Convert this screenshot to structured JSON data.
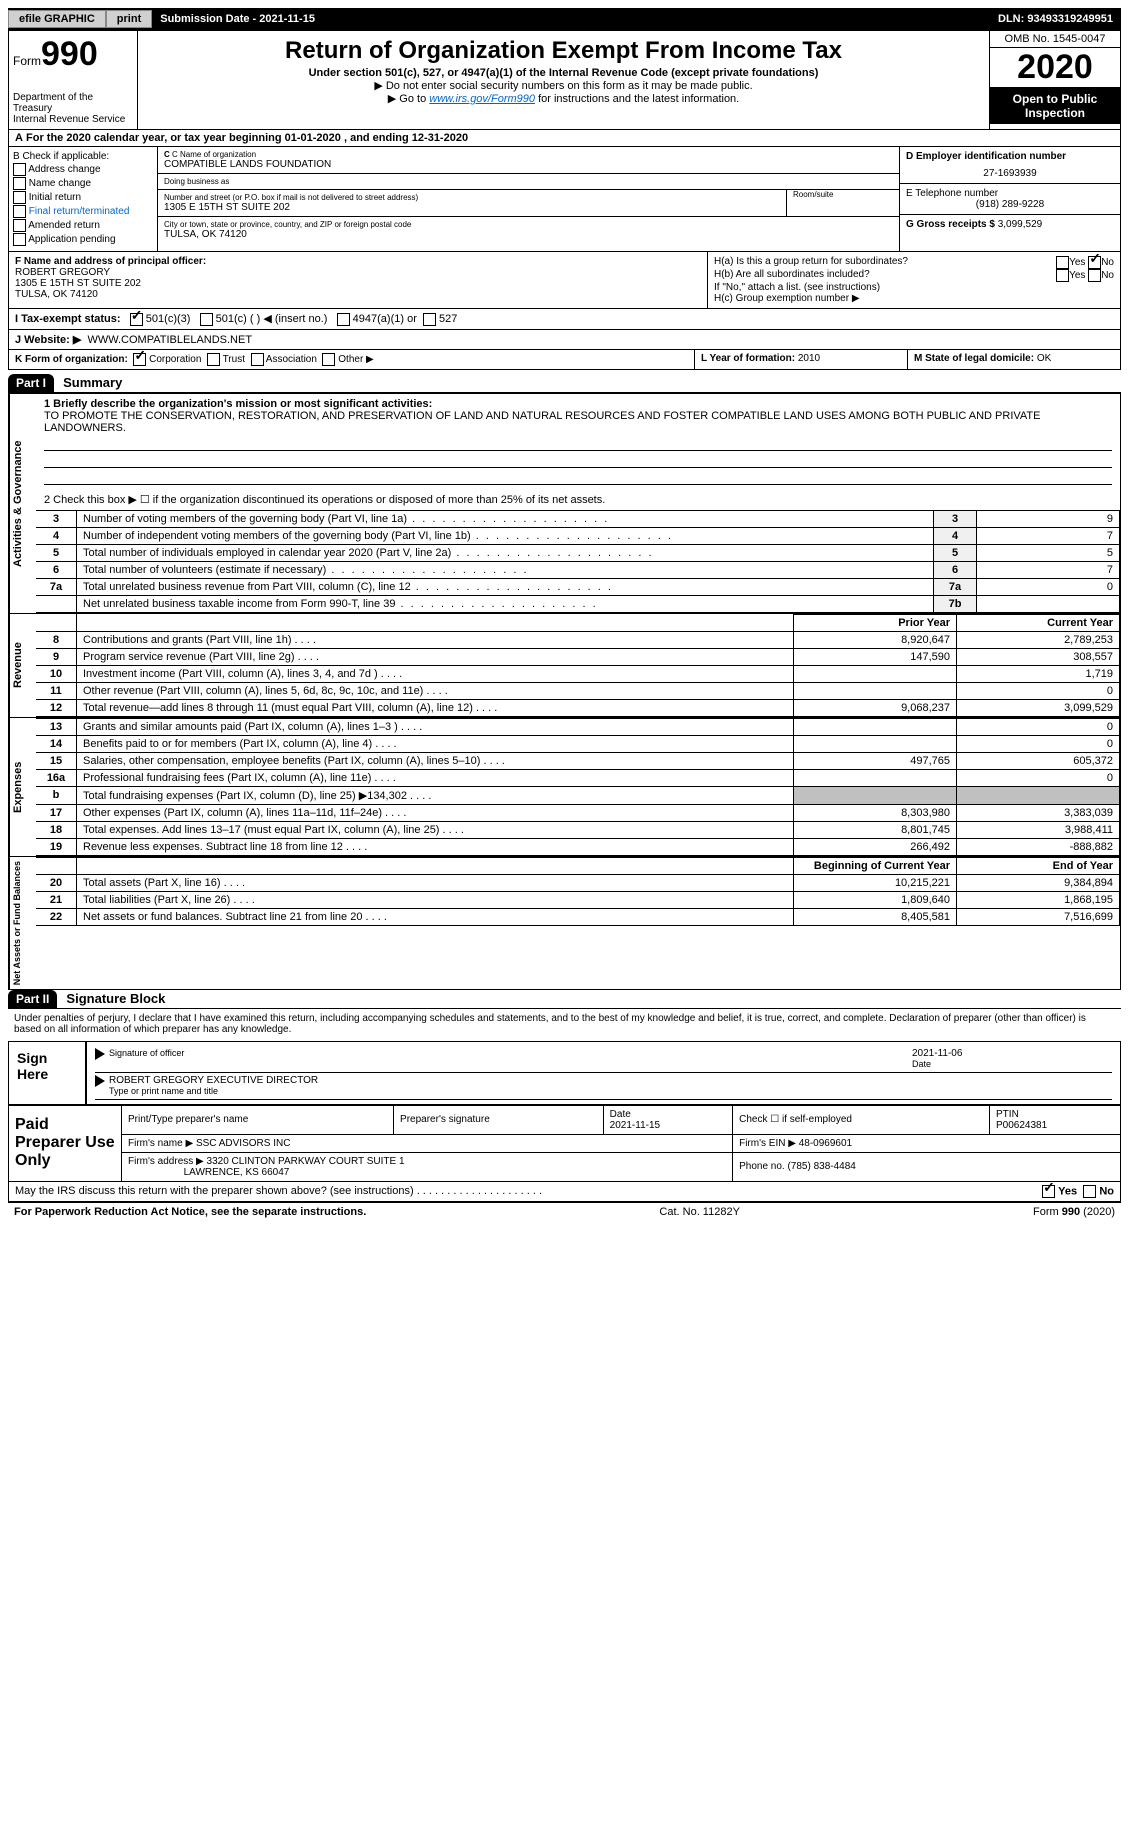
{
  "topbar": {
    "efile": "efile GRAPHIC",
    "print": "print",
    "sub_date_label": "Submission Date - ",
    "sub_date": "2021-11-15",
    "dln": "DLN: 93493319249951"
  },
  "header": {
    "form_label": "Form",
    "form_number": "990",
    "dept": "Department of the Treasury",
    "irs": "Internal Revenue Service",
    "title": "Return of Organization Exempt From Income Tax",
    "subtitle": "Under section 501(c), 527, or 4947(a)(1) of the Internal Revenue Code (except private foundations)",
    "instr1_arrow": "▶",
    "instr1": "Do not enter social security numbers on this form as it may be made public.",
    "instr2_pre": "Go to ",
    "instr2_link": "www.irs.gov/Form990",
    "instr2_post": " for instructions and the latest information.",
    "omb": "OMB No. 1545-0047",
    "year": "2020",
    "open_public": "Open to Public Inspection"
  },
  "period": {
    "prefix": "A",
    "text": "For the 2020 calendar year, or tax year beginning ",
    "begin": "01-01-2020",
    "mid": " , and ending ",
    "end": "12-31-2020"
  },
  "boxB": {
    "label": "B Check if applicable:",
    "opts": [
      "Address change",
      "Name change",
      "Initial return",
      "Final return/terminated",
      "Amended return",
      "Application pending"
    ]
  },
  "boxC": {
    "name_label": "C Name of organization",
    "name": "COMPATIBLE LANDS FOUNDATION",
    "dba_label": "Doing business as",
    "addr_label": "Number and street (or P.O. box if mail is not delivered to street address)",
    "room_label": "Room/suite",
    "addr": "1305 E 15TH ST SUITE 202",
    "city_label": "City or town, state or province, country, and ZIP or foreign postal code",
    "city": "TULSA, OK  74120"
  },
  "right_col": {
    "ein_label": "D Employer identification number",
    "ein": "27-1693939",
    "tel_label": "E Telephone number",
    "tel": "(918) 289-9228",
    "gross_label": "G Gross receipts $ ",
    "gross": "3,099,529"
  },
  "boxF": {
    "label": "F Name and address of principal officer:",
    "name": "ROBERT GREGORY",
    "addr1": "1305 E 15TH ST SUITE 202",
    "addr2": "TULSA, OK  74120"
  },
  "boxH": {
    "ha": "H(a)  Is this a group return for subordinates?",
    "hb": "H(b)  Are all subordinates included?",
    "hb_note": "If \"No,\" attach a list. (see instructions)",
    "hc": "H(c)  Group exemption number ▶",
    "yes": "Yes",
    "no": "No"
  },
  "taxI": {
    "label": "I  Tax-exempt status:",
    "o1": "501(c)(3)",
    "o2": "501(c) (  ) ◀ (insert no.)",
    "o3": "4947(a)(1) or",
    "o4": "527"
  },
  "taxJ": {
    "label": "J  Website: ▶",
    "url": "WWW.COMPATIBLELANDS.NET"
  },
  "rowK": {
    "label": "K Form of organization:",
    "opts": [
      "Corporation",
      "Trust",
      "Association",
      "Other ▶"
    ]
  },
  "rowL": {
    "label": "L Year of formation: ",
    "val": "2010"
  },
  "rowM": {
    "label": "M State of legal domicile: ",
    "val": "OK"
  },
  "part1": {
    "tag": "Part I",
    "title": "Summary",
    "vtab_ag": "Activities & Governance",
    "vtab_rev": "Revenue",
    "vtab_exp": "Expenses",
    "vtab_na": "Net Assets or Fund Balances",
    "mission_label": "1  Briefly describe the organization's mission or most significant activities:",
    "mission": "TO PROMOTE THE CONSERVATION, RESTORATION, AND PRESERVATION OF LAND AND NATURAL RESOURCES AND FOSTER COMPATIBLE LAND USES AMONG BOTH PUBLIC AND PRIVATE LANDOWNERS.",
    "line2": "2  Check this box ▶ ☐  if the organization discontinued its operations or disposed of more than 25% of its net assets.",
    "rows_ag": [
      {
        "n": "3",
        "desc": "Number of voting members of the governing body (Part VI, line 1a)",
        "lbl": "3",
        "val": "9"
      },
      {
        "n": "4",
        "desc": "Number of independent voting members of the governing body (Part VI, line 1b)",
        "lbl": "4",
        "val": "7"
      },
      {
        "n": "5",
        "desc": "Total number of individuals employed in calendar year 2020 (Part V, line 2a)",
        "lbl": "5",
        "val": "5"
      },
      {
        "n": "6",
        "desc": "Total number of volunteers (estimate if necessary)",
        "lbl": "6",
        "val": "7"
      },
      {
        "n": "7a",
        "desc": "Total unrelated business revenue from Part VIII, column (C), line 12",
        "lbl": "7a",
        "val": "0"
      },
      {
        "n": "",
        "desc": "Net unrelated business taxable income from Form 990-T, line 39",
        "lbl": "7b",
        "val": ""
      }
    ],
    "hdr_prior": "Prior Year",
    "hdr_curr": "Current Year",
    "rows_rev": [
      {
        "n": "8",
        "desc": "Contributions and grants (Part VIII, line 1h)",
        "py": "8,920,647",
        "cy": "2,789,253"
      },
      {
        "n": "9",
        "desc": "Program service revenue (Part VIII, line 2g)",
        "py": "147,590",
        "cy": "308,557"
      },
      {
        "n": "10",
        "desc": "Investment income (Part VIII, column (A), lines 3, 4, and 7d )",
        "py": "",
        "cy": "1,719"
      },
      {
        "n": "11",
        "desc": "Other revenue (Part VIII, column (A), lines 5, 6d, 8c, 9c, 10c, and 11e)",
        "py": "",
        "cy": "0"
      },
      {
        "n": "12",
        "desc": "Total revenue—add lines 8 through 11 (must equal Part VIII, column (A), line 12)",
        "py": "9,068,237",
        "cy": "3,099,529"
      }
    ],
    "rows_exp": [
      {
        "n": "13",
        "desc": "Grants and similar amounts paid (Part IX, column (A), lines 1–3 )",
        "py": "",
        "cy": "0"
      },
      {
        "n": "14",
        "desc": "Benefits paid to or for members (Part IX, column (A), line 4)",
        "py": "",
        "cy": "0"
      },
      {
        "n": "15",
        "desc": "Salaries, other compensation, employee benefits (Part IX, column (A), lines 5–10)",
        "py": "497,765",
        "cy": "605,372"
      },
      {
        "n": "16a",
        "desc": "Professional fundraising fees (Part IX, column (A), line 11e)",
        "py": "",
        "cy": "0"
      },
      {
        "n": "b",
        "desc": "Total fundraising expenses (Part IX, column (D), line 25) ▶134,302",
        "py": "shade",
        "cy": "shade"
      },
      {
        "n": "17",
        "desc": "Other expenses (Part IX, column (A), lines 11a–11d, 11f–24e)",
        "py": "8,303,980",
        "cy": "3,383,039"
      },
      {
        "n": "18",
        "desc": "Total expenses. Add lines 13–17 (must equal Part IX, column (A), line 25)",
        "py": "8,801,745",
        "cy": "3,988,411"
      },
      {
        "n": "19",
        "desc": "Revenue less expenses. Subtract line 18 from line 12",
        "py": "266,492",
        "cy": "-888,882"
      }
    ],
    "hdr_beg": "Beginning of Current Year",
    "hdr_end": "End of Year",
    "rows_na": [
      {
        "n": "20",
        "desc": "Total assets (Part X, line 16)",
        "py": "10,215,221",
        "cy": "9,384,894"
      },
      {
        "n": "21",
        "desc": "Total liabilities (Part X, line 26)",
        "py": "1,809,640",
        "cy": "1,868,195"
      },
      {
        "n": "22",
        "desc": "Net assets or fund balances. Subtract line 21 from line 20",
        "py": "8,405,581",
        "cy": "7,516,699"
      }
    ]
  },
  "part2": {
    "tag": "Part II",
    "title": "Signature Block",
    "decl": "Under penalties of perjury, I declare that I have examined this return, including accompanying schedules and statements, and to the best of my knowledge and belief, it is true, correct, and complete. Declaration of preparer (other than officer) is based on all information of which preparer has any knowledge.",
    "sign_here": "Sign Here",
    "sig_officer": "Signature of officer",
    "sig_date": "2021-11-06",
    "date_lbl": "Date",
    "officer_name": "ROBERT GREGORY EXECUTIVE DIRECTOR",
    "type_name": "Type or print name and title",
    "paid_prep": "Paid Preparer Use Only",
    "prep_name_lbl": "Print/Type preparer's name",
    "prep_sig_lbl": "Preparer's signature",
    "prep_date_lbl": "Date",
    "prep_date": "2021-11-15",
    "check_self": "Check ☐ if self-employed",
    "ptin_lbl": "PTIN",
    "ptin": "P00624381",
    "firm_name_lbl": "Firm's name    ▶",
    "firm_name": "SSC ADVISORS INC",
    "firm_ein_lbl": "Firm's EIN ▶",
    "firm_ein": "48-0969601",
    "firm_addr_lbl": "Firm's address ▶",
    "firm_addr1": "3320 CLINTON PARKWAY COURT SUITE 1",
    "firm_addr2": "LAWRENCE, KS  66047",
    "phone_lbl": "Phone no. ",
    "phone": "(785) 838-4484",
    "discuss": "May the IRS discuss this return with the preparer shown above? (see instructions)",
    "discuss_yes": "Yes",
    "discuss_no": "No"
  },
  "footer": {
    "pra": "For Paperwork Reduction Act Notice, see the separate instructions.",
    "cat": "Cat. No. 11282Y",
    "form": "Form 990 (2020)"
  }
}
